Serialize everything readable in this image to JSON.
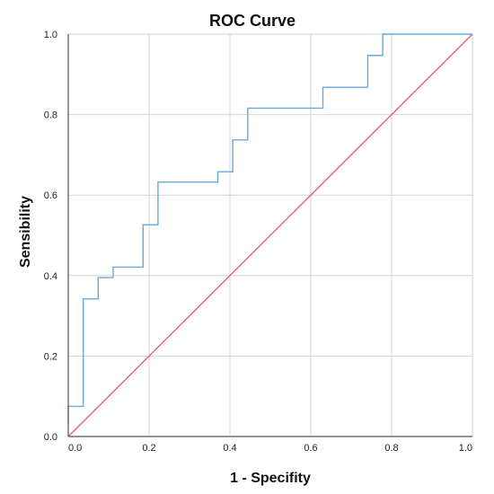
{
  "chart_data": {
    "type": "line",
    "title": "ROC Curve",
    "xlabel": "1 - Specifity",
    "ylabel": "Sensibility",
    "xlim": [
      0,
      1
    ],
    "ylim": [
      0,
      1
    ],
    "x_ticks": [
      "0.0",
      "0.2",
      "0.4",
      "0.6",
      "0.8",
      "1.0"
    ],
    "y_ticks": [
      "0.0",
      "0.2",
      "0.4",
      "0.6",
      "0.8",
      "1.0"
    ],
    "grid": true,
    "legend": "none",
    "series": [
      {
        "color": "#6aa8dc",
        "step": true,
        "points": [
          [
            0.0,
            0.03
          ],
          [
            0.0,
            0.075
          ],
          [
            0.037,
            0.075
          ],
          [
            0.037,
            0.342
          ],
          [
            0.074,
            0.342
          ],
          [
            0.074,
            0.395
          ],
          [
            0.111,
            0.395
          ],
          [
            0.111,
            0.421
          ],
          [
            0.185,
            0.421
          ],
          [
            0.185,
            0.526
          ],
          [
            0.222,
            0.526
          ],
          [
            0.222,
            0.632
          ],
          [
            0.37,
            0.632
          ],
          [
            0.37,
            0.658
          ],
          [
            0.407,
            0.658
          ],
          [
            0.407,
            0.737
          ],
          [
            0.444,
            0.737
          ],
          [
            0.444,
            0.816
          ],
          [
            0.63,
            0.816
          ],
          [
            0.63,
            0.868
          ],
          [
            0.741,
            0.868
          ],
          [
            0.741,
            0.947
          ],
          [
            0.778,
            0.947
          ],
          [
            0.778,
            1.0
          ],
          [
            1.0,
            1.0
          ]
        ]
      },
      {
        "color": "#e8607a",
        "step": false,
        "points": [
          [
            0,
            0
          ],
          [
            1,
            1
          ]
        ]
      }
    ]
  }
}
